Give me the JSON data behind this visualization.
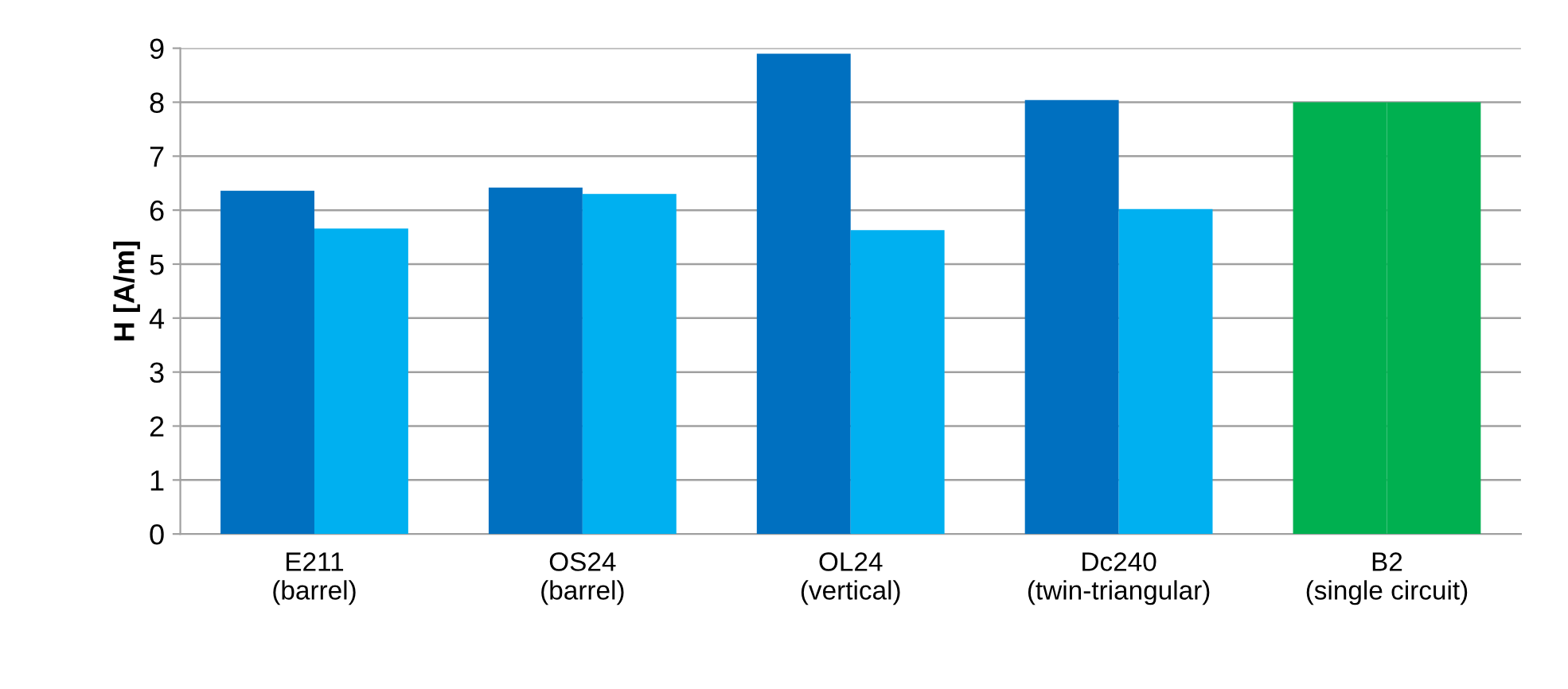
{
  "chart_data": {
    "type": "bar",
    "ylabel": "H [A/m]",
    "categories": [
      "E211\n(barrel)",
      "OS24\n(barrel)",
      "OL24\n(vertical)",
      "Dc240\n(twin-triangular)",
      "B2\n(single circuit)"
    ],
    "series": [
      {
        "colors": [
          "#0070c0",
          "#0070c0",
          "#0070c0",
          "#0070c0",
          "#00b050"
        ],
        "values": [
          6.36,
          6.42,
          8.9,
          8.04,
          8.0
        ]
      },
      {
        "colors": [
          "#00b0f0",
          "#00b0f0",
          "#00b0f0",
          "#00b0f0",
          "#00b050"
        ],
        "values": [
          5.66,
          6.3,
          5.63,
          6.02,
          8.0
        ]
      }
    ],
    "ylim": [
      0,
      9
    ],
    "yticks": [
      0,
      1,
      2,
      3,
      4,
      5,
      6,
      7,
      8,
      9
    ],
    "grid": "y",
    "legend": false
  }
}
